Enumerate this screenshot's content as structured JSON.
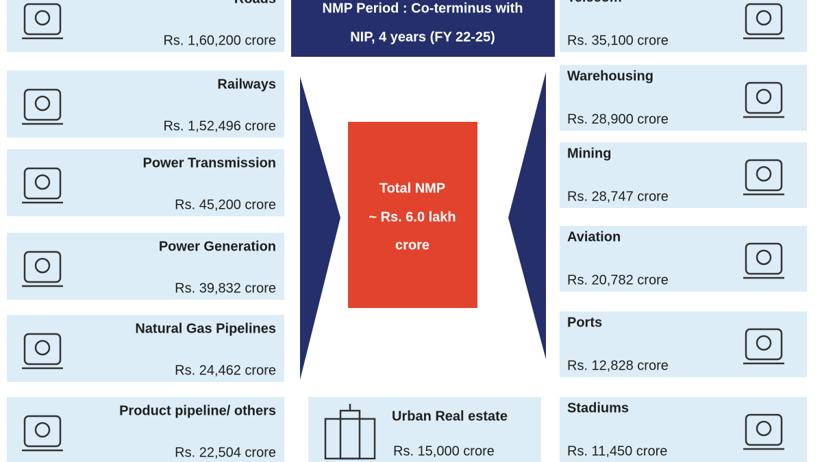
{
  "header": {
    "lines": [
      "NMP Period : Co-terminus with",
      "NIP,  4 years (FY 22-25)"
    ]
  },
  "total": {
    "lines": [
      "Total NMP",
      "~ Rs. 6.0  lakh",
      "crore"
    ]
  },
  "left": [
    {
      "name": "Roads",
      "value": "Rs. 1,60,200 crore"
    },
    {
      "name": "Railways",
      "value": "Rs. 1,52,496 crore"
    },
    {
      "name": "Power Transmission",
      "value": "Rs. 45,200 crore"
    },
    {
      "name": "Power Generation",
      "value": "Rs. 39,832 crore"
    },
    {
      "name": "Natural Gas Pipelines",
      "value": "Rs. 24,462 crore"
    },
    {
      "name": "Product pipeline/ others",
      "value": "Rs. 22,504 crore"
    }
  ],
  "right": [
    {
      "name": "Telecom",
      "value": "Rs. 35,100 crore"
    },
    {
      "name": "Warehousing",
      "value": "Rs. 28,900 crore"
    },
    {
      "name": "Mining",
      "value": "Rs. 28,747 crore"
    },
    {
      "name": "Aviation",
      "value": "Rs. 20,782 crore"
    },
    {
      "name": "Ports",
      "value": "Rs. 12,828 crore"
    },
    {
      "name": "Stadiums",
      "value": "Rs. 11,450 crore"
    }
  ],
  "bottom": {
    "name": "Urban Real estate",
    "value": "Rs. 15,000 crore"
  }
}
